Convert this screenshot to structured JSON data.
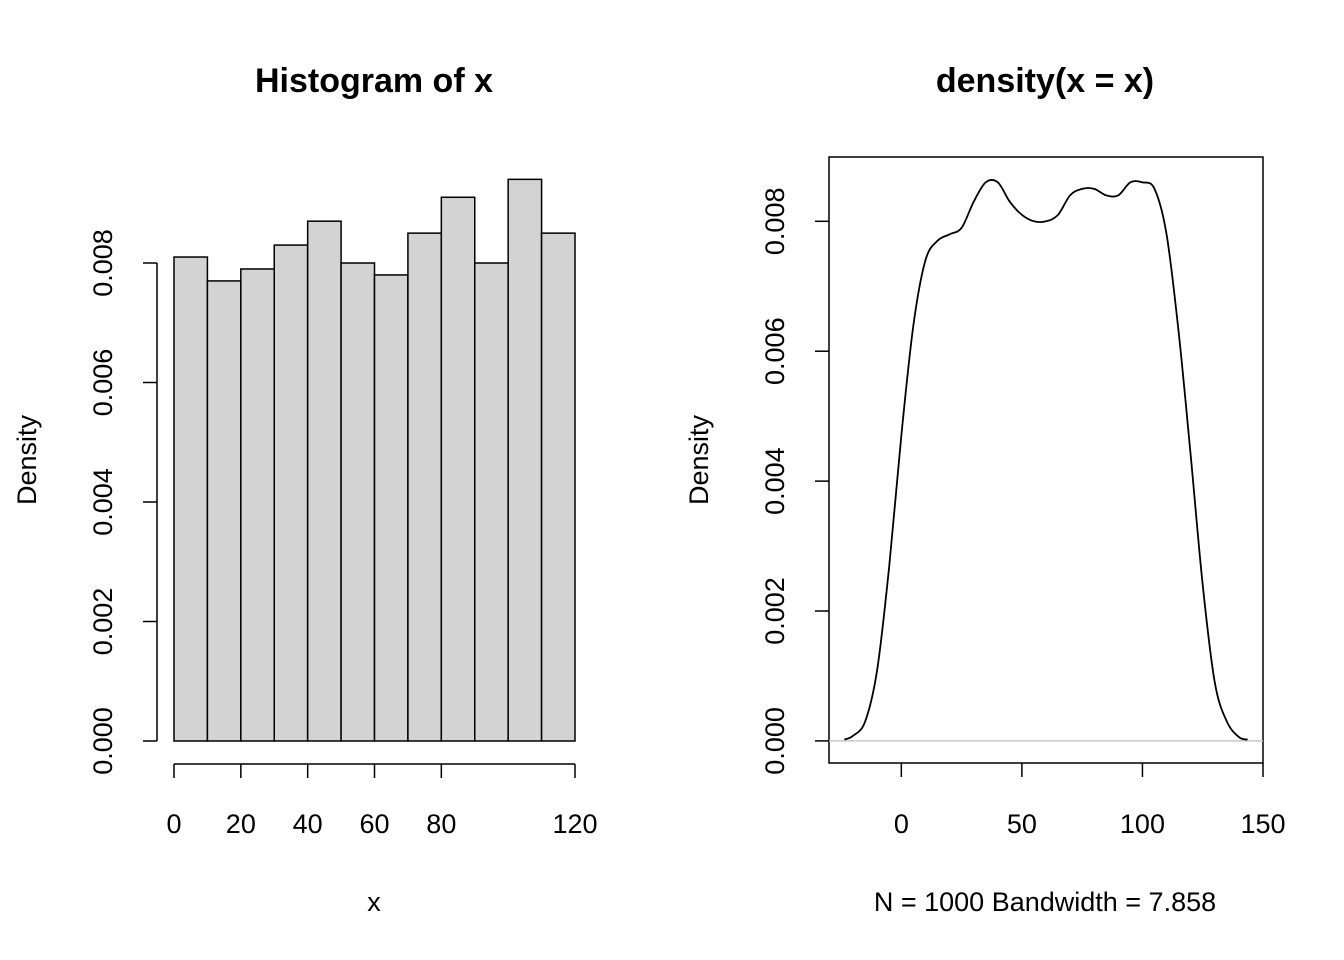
{
  "chart_data": [
    {
      "type": "bar",
      "title": "Histogram of x",
      "xlabel": "x",
      "ylabel": "Density",
      "bin_edges": [
        0,
        10,
        20,
        30,
        40,
        50,
        60,
        70,
        80,
        90,
        100,
        110,
        120
      ],
      "values": [
        0.0081,
        0.0077,
        0.0079,
        0.0083,
        0.0087,
        0.008,
        0.0078,
        0.0085,
        0.0091,
        0.008,
        0.0094,
        0.0085
      ],
      "xlim": [
        0,
        120
      ],
      "ylim": [
        0,
        0.0098
      ],
      "x_ticks": [
        "0",
        "20",
        "40",
        "60",
        "80",
        "120"
      ],
      "x_tick_values": [
        0,
        20,
        40,
        60,
        80,
        120
      ],
      "y_ticks": [
        "0.000",
        "0.002",
        "0.004",
        "0.006",
        "0.008"
      ],
      "y_tick_values": [
        0,
        0.002,
        0.004,
        0.006,
        0.008
      ],
      "bar_color": "#d3d3d3"
    },
    {
      "type": "line",
      "title": "density(x = x)",
      "xlabel": "N = 1000   Bandwidth = 7.858",
      "ylabel": "Density",
      "xlim": [
        -30,
        150
      ],
      "ylim": [
        -0.00034,
        0.00899
      ],
      "x_ticks": [
        "0",
        "50",
        "100",
        "150"
      ],
      "x_tick_values": [
        0,
        50,
        100,
        150
      ],
      "y_ticks": [
        "0.000",
        "0.002",
        "0.004",
        "0.006",
        "0.008"
      ],
      "y_tick_values": [
        0,
        0.002,
        0.004,
        0.006,
        0.008
      ],
      "series": [
        {
          "x": [
            -23.6,
            -20,
            -15,
            -10,
            -5,
            0,
            5,
            10,
            15,
            20,
            25,
            30,
            35,
            40,
            45,
            50,
            55,
            60,
            65,
            70,
            75,
            80,
            85,
            90,
            95,
            100,
            105,
            110,
            115,
            120,
            125,
            130,
            135,
            140,
            143.6
          ],
          "y": [
            2e-05,
            8e-05,
            0.0003,
            0.0011,
            0.0027,
            0.0047,
            0.0064,
            0.0074,
            0.0077,
            0.0078,
            0.0079,
            0.0083,
            0.0086,
            0.0086,
            0.0083,
            0.0081,
            0.008,
            0.008,
            0.0081,
            0.0084,
            0.0085,
            0.0085,
            0.0084,
            0.0084,
            0.0086,
            0.0086,
            0.0085,
            0.0078,
            0.0063,
            0.0044,
            0.0024,
            0.0009,
            0.0003,
            6e-05,
            2e-05
          ]
        }
      ],
      "baseline_color": "#c8c8c8"
    }
  ]
}
